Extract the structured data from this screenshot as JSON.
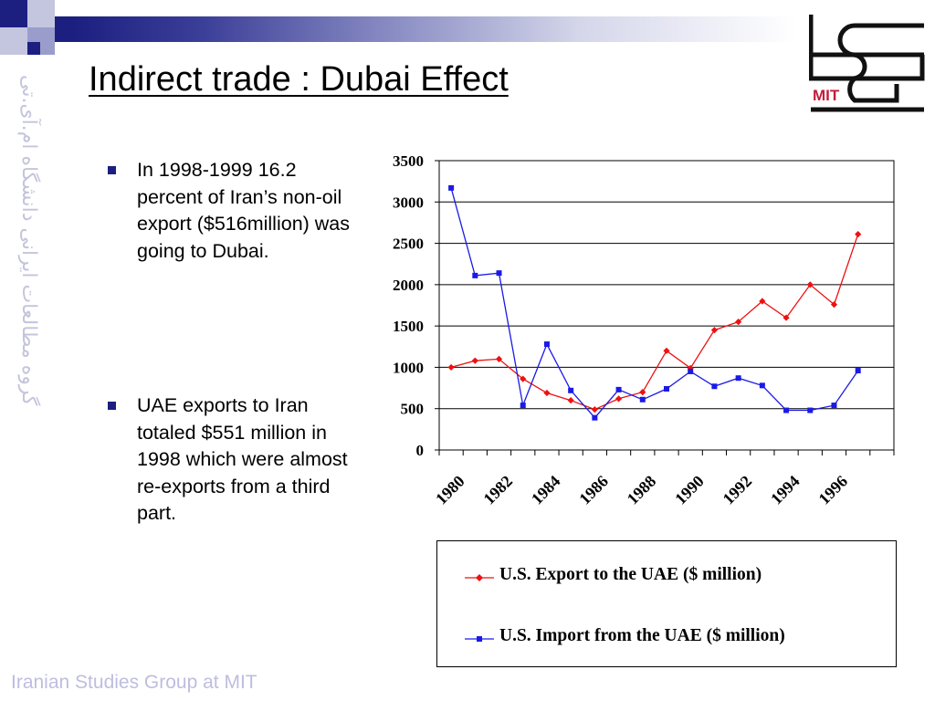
{
  "slide": {
    "title": "Indirect trade : Dubai Effect",
    "footer": "Iranian Studies Group at MIT",
    "side_text": "گروه مطالعات ایرانی دانشگاه ام.آی.تی",
    "logo_text": "MIT"
  },
  "bullets": [
    {
      "text": "In 1998-1999 16.2 percent of Iran’s non-oil export ($516million) was going to Dubai."
    },
    {
      "text": "UAE exports to Iran totaled $551 million in 1998 which were almost re-exports from a third part."
    }
  ],
  "chart_data": {
    "type": "line",
    "x": [
      1980,
      1981,
      1982,
      1983,
      1984,
      1985,
      1986,
      1987,
      1988,
      1989,
      1990,
      1991,
      1992,
      1993,
      1994,
      1995,
      1996,
      1997
    ],
    "x_tick_labels": [
      "1980",
      "1982",
      "1984",
      "1986",
      "1988",
      "1990",
      "1992",
      "1994",
      "1996"
    ],
    "y_ticks": [
      0,
      500,
      1000,
      1500,
      2000,
      2500,
      3000,
      3500
    ],
    "ylim": [
      0,
      3500
    ],
    "grid": true,
    "legend_position": "bottom",
    "series": [
      {
        "name": "U.S. Export to the UAE ($ million)",
        "color": "#ee1111",
        "marker": "diamond",
        "values": [
          1000,
          1080,
          1100,
          860,
          690,
          600,
          490,
          620,
          700,
          1200,
          990,
          1450,
          1550,
          1800,
          1600,
          2000,
          1760,
          2610
        ]
      },
      {
        "name": "U.S. Import from the UAE  ($ million)",
        "color": "#1a1ae6",
        "marker": "square",
        "values": [
          3170,
          2110,
          2140,
          540,
          1280,
          720,
          390,
          730,
          610,
          740,
          950,
          770,
          870,
          780,
          480,
          480,
          540,
          960
        ]
      }
    ]
  }
}
